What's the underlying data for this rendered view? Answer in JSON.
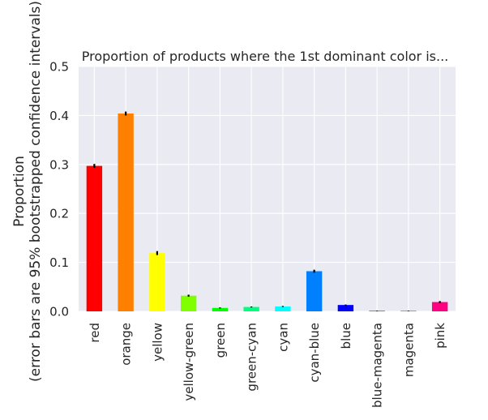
{
  "chart_data": {
    "type": "bar",
    "title": "Proportion of products where the 1st dominant color is...",
    "ylabel_line1": "Proportion",
    "ylabel_line2": "(error bars are 95% bootstrapped confidence intervals)",
    "xlabel": "",
    "ylim": [
      0,
      0.5
    ],
    "yticks": [
      0.0,
      0.1,
      0.2,
      0.3,
      0.4,
      0.5
    ],
    "ytick_labels": [
      "0.0",
      "0.1",
      "0.2",
      "0.3",
      "0.4",
      "0.5"
    ],
    "grid": true,
    "background_color": "#eaeaf2",
    "grid_color": "#ffffff",
    "error_bar_color": "#000000",
    "categories": [
      "red",
      "orange",
      "yellow",
      "yellow-green",
      "green",
      "green-cyan",
      "cyan",
      "cyan-blue",
      "blue",
      "blue-magenta",
      "magenta",
      "pink"
    ],
    "values": [
      0.297,
      0.404,
      0.119,
      0.032,
      0.007,
      0.009,
      0.01,
      0.082,
      0.013,
      0.001,
      0.001,
      0.019
    ],
    "error_low": [
      0.293,
      0.4,
      0.115,
      0.03,
      0.006,
      0.008,
      0.009,
      0.079,
      0.012,
      0.0005,
      0.0005,
      0.017
    ],
    "error_high": [
      0.301,
      0.408,
      0.123,
      0.034,
      0.008,
      0.01,
      0.011,
      0.085,
      0.014,
      0.0015,
      0.0015,
      0.021
    ],
    "bar_colors": [
      "#ff0000",
      "#ff8000",
      "#ffff00",
      "#80ff00",
      "#00ff00",
      "#00ff80",
      "#00ffff",
      "#0080ff",
      "#0000ff",
      "#8000ff",
      "#ff00ff",
      "#ff0080"
    ]
  }
}
